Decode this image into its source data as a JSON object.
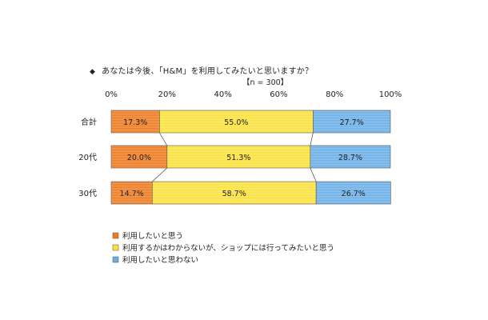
{
  "title": {
    "bullet": "◆",
    "text": "あなたは今後、「H&M」を利用してみたいと思いますか？"
  },
  "sample_size": "【n = 300】",
  "chart_data": {
    "type": "bar",
    "orientation": "horizontal",
    "stacked": true,
    "title": "あなたは今後、「H&M」を利用してみたいと思いますか？",
    "categories": [
      "合計",
      "20代",
      "30代"
    ],
    "xlim": [
      0,
      100
    ],
    "xticks": [
      "0%",
      "20%",
      "40%",
      "60%",
      "80%",
      "100%"
    ],
    "grid": false,
    "legend_position": "bottom-left",
    "series": [
      {
        "name": "利用したいと思う",
        "values": [
          17.3,
          20.0,
          14.7
        ],
        "labels": [
          "17.3%",
          "20.0%",
          "14.7%"
        ],
        "color": "#f07a1e"
      },
      {
        "name": "利用するかはわからないが、ショップには行ってみたいと思う",
        "values": [
          55.0,
          51.3,
          58.7
        ],
        "labels": [
          "55.0%",
          "51.3%",
          "58.7%"
        ],
        "color": "#fde03a"
      },
      {
        "name": "利用したいと思わない",
        "values": [
          27.7,
          28.7,
          26.7
        ],
        "labels": [
          "27.7%",
          "28.7%",
          "26.7%"
        ],
        "color": "#6aaee8"
      }
    ]
  }
}
